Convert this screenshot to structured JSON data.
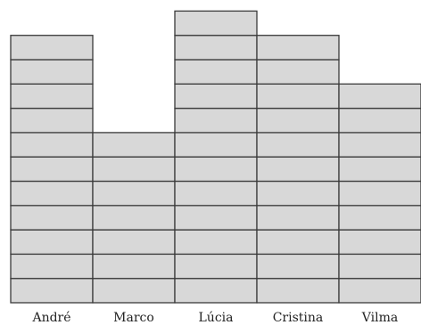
{
  "chart_data": {
    "type": "bar",
    "categories": [
      "André",
      "Marco",
      "Lúcia",
      "Cristina",
      "Vilma"
    ],
    "values": [
      11,
      7,
      12,
      11,
      9
    ],
    "unit_style": "stacked unit blocks",
    "title": "",
    "xlabel": "",
    "ylabel": "",
    "ylim": [
      0,
      12
    ],
    "grid": false,
    "legend": "none"
  },
  "colors": {
    "bar_fill": "#d8d8d8",
    "bar_stroke": "#3a3a3a",
    "label_text": "#222222",
    "background": "#ffffff"
  }
}
